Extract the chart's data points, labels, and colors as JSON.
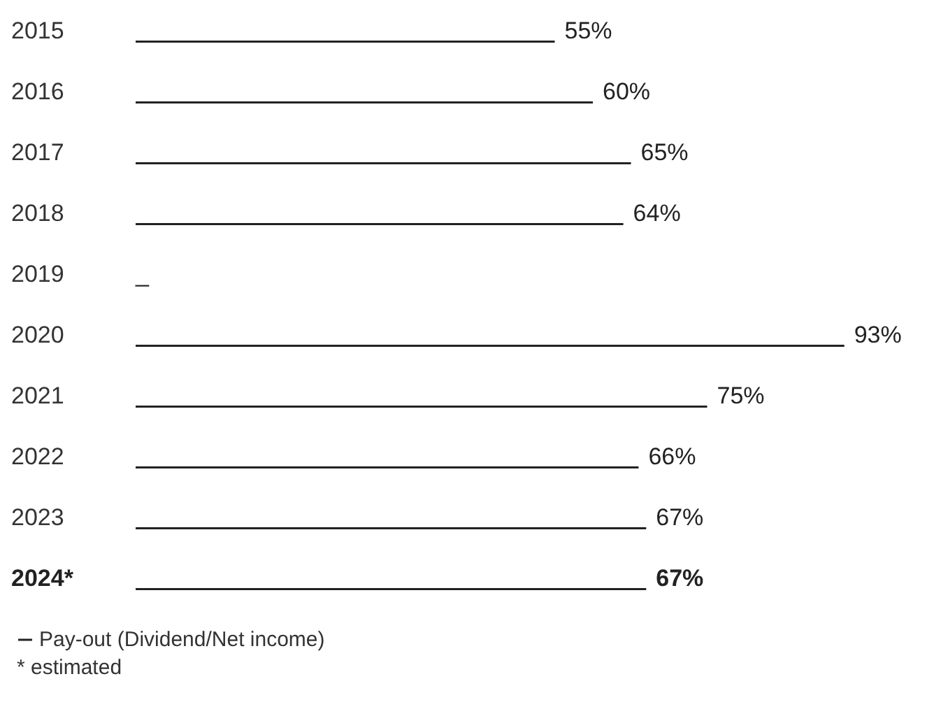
{
  "chart_data": {
    "type": "bar",
    "orientation": "horizontal",
    "categories": [
      "2015",
      "2016",
      "2017",
      "2018",
      "2019",
      "2020",
      "2021",
      "2022",
      "2023",
      "2024*"
    ],
    "series": [
      {
        "name": "Pay-out (Dividend/Net income)",
        "color": "#222222",
        "values": [
          55,
          60,
          65,
          64,
          null,
          93,
          75,
          66,
          67,
          67
        ],
        "value_labels": [
          "55%",
          "60%",
          "65%",
          "64%",
          "_",
          "93%",
          "75%",
          "66%",
          "67%",
          "67%"
        ]
      }
    ],
    "tick_labels": "y",
    "legend": "bottom left",
    "annotations": [
      "* estimated"
    ]
  }
}
